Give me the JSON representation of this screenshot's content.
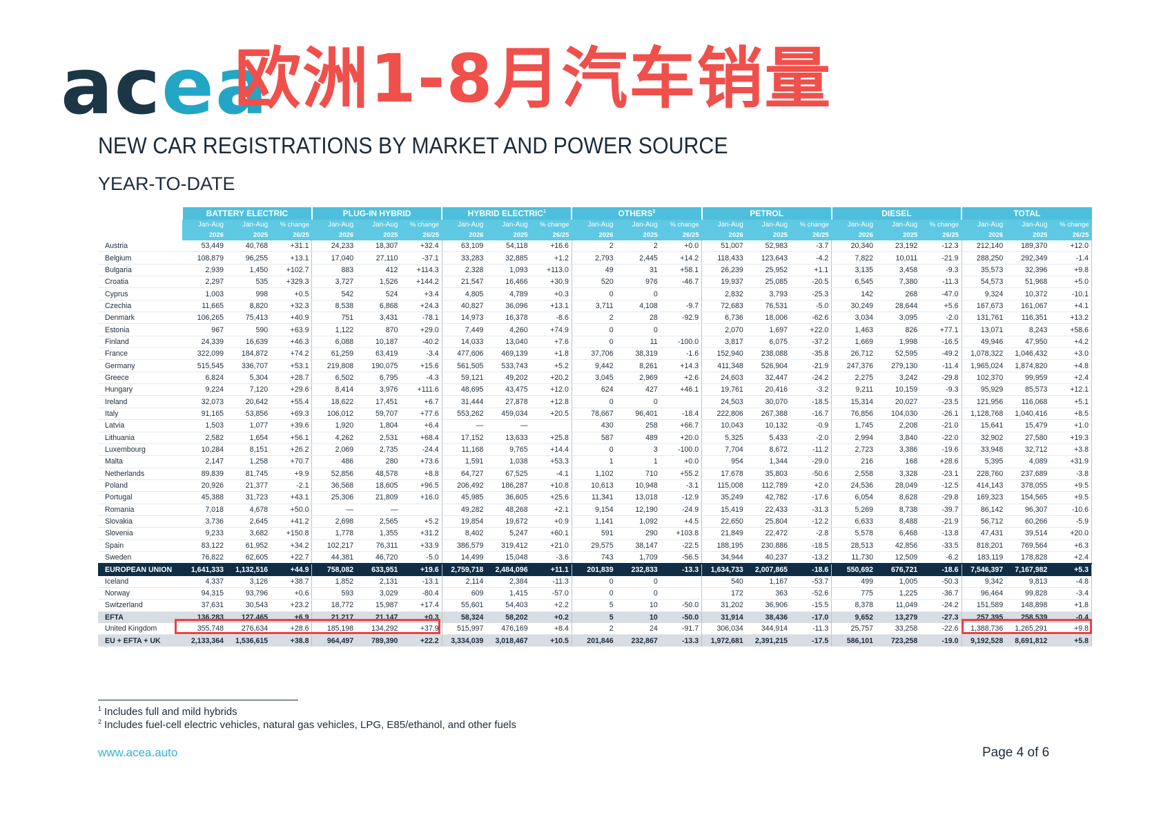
{
  "logo": {
    "part1": "ac",
    "part2": "ea"
  },
  "overlay_title": "欧洲1-8月汽车销量",
  "title": "NEW CAR REGISTRATIONS BY MARKET AND POWER SOURCE",
  "subtitle": "YEAR-TO-DATE",
  "groups": [
    "BATTERY ELECTRIC",
    "PLUG-IN HYBRID",
    "HYBRID ELECTRIC",
    "OTHERS",
    "PETROL",
    "DIESEL",
    "TOTAL"
  ],
  "group_footnotes": [
    "",
    "",
    "1",
    "2",
    "",
    "",
    ""
  ],
  "col_headers": {
    "a": "Jan-Aug",
    "b": "Jan-Aug",
    "c": "% change"
  },
  "col_subheaders": {
    "a": "2026",
    "b": "2025",
    "c": "26/25"
  },
  "rows": [
    {
      "country": "Austria",
      "v": [
        "53,449",
        "40,768",
        "+31.1",
        "24,233",
        "18,307",
        "+32.4",
        "63,109",
        "54,118",
        "+16.6",
        "2",
        "2",
        "+0.0",
        "51,007",
        "52,983",
        "-3.7",
        "20,340",
        "23,192",
        "-12.3",
        "212,140",
        "189,370",
        "+12.0"
      ]
    },
    {
      "country": "Belgium",
      "v": [
        "108,879",
        "96,255",
        "+13.1",
        "17,040",
        "27,110",
        "-37.1",
        "33,283",
        "32,885",
        "+1.2",
        "2,793",
        "2,445",
        "+14.2",
        "118,433",
        "123,643",
        "-4.2",
        "7,822",
        "10,011",
        "-21.9",
        "288,250",
        "292,349",
        "-1.4"
      ]
    },
    {
      "country": "Bulgaria",
      "v": [
        "2,939",
        "1,450",
        "+102.7",
        "883",
        "412",
        "+114.3",
        "2,328",
        "1,093",
        "+113.0",
        "49",
        "31",
        "+58.1",
        "26,239",
        "25,952",
        "+1.1",
        "3,135",
        "3,458",
        "-9.3",
        "35,573",
        "32,396",
        "+9.8"
      ]
    },
    {
      "country": "Croatia",
      "v": [
        "2,297",
        "535",
        "+329.3",
        "3,727",
        "1,526",
        "+144.2",
        "21,547",
        "16,466",
        "+30.9",
        "520",
        "976",
        "-46.7",
        "19,937",
        "25,085",
        "-20.5",
        "6,545",
        "7,380",
        "-11.3",
        "54,573",
        "51,968",
        "+5.0"
      ]
    },
    {
      "country": "Cyprus",
      "v": [
        "1,003",
        "998",
        "+0.5",
        "542",
        "524",
        "+3.4",
        "4,805",
        "4,789",
        "+0.3",
        "0",
        "0",
        "",
        "2,832",
        "3,793",
        "-25.3",
        "142",
        "268",
        "-47.0",
        "9,324",
        "10,372",
        "-10.1"
      ]
    },
    {
      "country": "Czechia",
      "v": [
        "11,665",
        "8,820",
        "+32.3",
        "8,538",
        "6,868",
        "+24.3",
        "40,827",
        "36,096",
        "+13.1",
        "3,711",
        "4,108",
        "-9.7",
        "72,683",
        "76,531",
        "-5.0",
        "30,249",
        "28,644",
        "+5.6",
        "167,673",
        "161,067",
        "+4.1"
      ]
    },
    {
      "country": "Denmark",
      "v": [
        "106,265",
        "75,413",
        "+40.9",
        "751",
        "3,431",
        "-78.1",
        "14,973",
        "16,378",
        "-8.6",
        "2",
        "28",
        "-92.9",
        "6,736",
        "18,006",
        "-62.6",
        "3,034",
        "3,095",
        "-2.0",
        "131,761",
        "116,351",
        "+13.2"
      ]
    },
    {
      "country": "Estonia",
      "v": [
        "967",
        "590",
        "+63.9",
        "1,122",
        "870",
        "+29.0",
        "7,449",
        "4,260",
        "+74.9",
        "0",
        "0",
        "",
        "2,070",
        "1,697",
        "+22.0",
        "1,463",
        "826",
        "+77.1",
        "13,071",
        "8,243",
        "+58.6"
      ]
    },
    {
      "country": "Finland",
      "v": [
        "24,339",
        "16,639",
        "+46.3",
        "6,088",
        "10,187",
        "-40.2",
        "14,033",
        "13,040",
        "+7.6",
        "0",
        "11",
        "-100.0",
        "3,817",
        "6,075",
        "-37.2",
        "1,669",
        "1,998",
        "-16.5",
        "49,946",
        "47,950",
        "+4.2"
      ]
    },
    {
      "country": "France",
      "v": [
        "322,099",
        "184,872",
        "+74.2",
        "61,259",
        "63,419",
        "-3.4",
        "477,606",
        "469,139",
        "+1.8",
        "37,706",
        "38,319",
        "-1.6",
        "152,940",
        "238,088",
        "-35.8",
        "26,712",
        "52,595",
        "-49.2",
        "1,078,322",
        "1,046,432",
        "+3.0"
      ]
    },
    {
      "country": "Germany",
      "v": [
        "515,545",
        "336,707",
        "+53.1",
        "219,808",
        "190,075",
        "+15.6",
        "561,505",
        "533,743",
        "+5.2",
        "9,442",
        "8,261",
        "+14.3",
        "411,348",
        "526,904",
        "-21.9",
        "247,376",
        "279,130",
        "-11.4",
        "1,965,024",
        "1,874,820",
        "+4.8"
      ]
    },
    {
      "country": "Greece",
      "v": [
        "6,824",
        "5,304",
        "+28.7",
        "6,502",
        "6,795",
        "-4.3",
        "59,121",
        "49,202",
        "+20.2",
        "3,045",
        "2,969",
        "+2.6",
        "24,603",
        "32,447",
        "-24.2",
        "2,275",
        "3,242",
        "-29.8",
        "102,370",
        "99,959",
        "+2.4"
      ]
    },
    {
      "country": "Hungary",
      "v": [
        "9,224",
        "7,120",
        "+29.6",
        "8,414",
        "3,976",
        "+111.6",
        "48,695",
        "43,475",
        "+12.0",
        "624",
        "427",
        "+46.1",
        "19,761",
        "20,416",
        "-3.2",
        "9,211",
        "10,159",
        "-9.3",
        "95,929",
        "85,573",
        "+12.1"
      ]
    },
    {
      "country": "Ireland",
      "v": [
        "32,073",
        "20,642",
        "+55.4",
        "18,622",
        "17,451",
        "+6.7",
        "31,444",
        "27,878",
        "+12.8",
        "0",
        "0",
        "",
        "24,503",
        "30,070",
        "-18.5",
        "15,314",
        "20,027",
        "-23.5",
        "121,956",
        "116,068",
        "+5.1"
      ]
    },
    {
      "country": "Italy",
      "v": [
        "91,165",
        "53,856",
        "+69.3",
        "106,012",
        "59,707",
        "+77.6",
        "553,262",
        "459,034",
        "+20.5",
        "78,667",
        "96,401",
        "-18.4",
        "222,806",
        "267,388",
        "-16.7",
        "76,856",
        "104,030",
        "-26.1",
        "1,128,768",
        "1,040,416",
        "+8.5"
      ]
    },
    {
      "country": "Latvia",
      "v": [
        "1,503",
        "1,077",
        "+39.6",
        "1,920",
        "1,804",
        "+6.4",
        "—",
        "—",
        "",
        "430",
        "258",
        "+66.7",
        "10,043",
        "10,132",
        "-0.9",
        "1,745",
        "2,208",
        "-21.0",
        "15,641",
        "15,479",
        "+1.0"
      ]
    },
    {
      "country": "Lithuania",
      "v": [
        "2,582",
        "1,654",
        "+56.1",
        "4,262",
        "2,531",
        "+68.4",
        "17,152",
        "13,633",
        "+25.8",
        "587",
        "489",
        "+20.0",
        "5,325",
        "5,433",
        "-2.0",
        "2,994",
        "3,840",
        "-22.0",
        "32,902",
        "27,580",
        "+19.3"
      ]
    },
    {
      "country": "Luxembourg",
      "v": [
        "10,284",
        "8,151",
        "+26.2",
        "2,069",
        "2,735",
        "-24.4",
        "11,168",
        "9,765",
        "+14.4",
        "0",
        "3",
        "-100.0",
        "7,704",
        "8,672",
        "-11.2",
        "2,723",
        "3,386",
        "-19.6",
        "33,948",
        "32,712",
        "+3.8"
      ]
    },
    {
      "country": "Malta",
      "v": [
        "2,147",
        "1,258",
        "+70.7",
        "486",
        "280",
        "+73.6",
        "1,591",
        "1,038",
        "+53.3",
        "1",
        "1",
        "+0.0",
        "954",
        "1,344",
        "-29.0",
        "216",
        "168",
        "+28.6",
        "5,395",
        "4,089",
        "+31.9"
      ]
    },
    {
      "country": "Netherlands",
      "v": [
        "89,839",
        "81,745",
        "+9.9",
        "52,856",
        "48,578",
        "+8.8",
        "64,727",
        "67,525",
        "-4.1",
        "1,102",
        "710",
        "+55.2",
        "17,678",
        "35,803",
        "-50.6",
        "2,558",
        "3,328",
        "-23.1",
        "228,760",
        "237,689",
        "-3.8"
      ]
    },
    {
      "country": "Poland",
      "v": [
        "20,926",
        "21,377",
        "-2.1",
        "36,568",
        "18,605",
        "+96.5",
        "206,492",
        "186,287",
        "+10.8",
        "10,613",
        "10,948",
        "-3.1",
        "115,008",
        "112,789",
        "+2.0",
        "24,536",
        "28,049",
        "-12.5",
        "414,143",
        "378,055",
        "+9.5"
      ]
    },
    {
      "country": "Portugal",
      "v": [
        "45,388",
        "31,723",
        "+43.1",
        "25,306",
        "21,809",
        "+16.0",
        "45,985",
        "36,605",
        "+25.6",
        "11,341",
        "13,018",
        "-12.9",
        "35,249",
        "42,782",
        "-17.6",
        "6,054",
        "8,628",
        "-29.8",
        "169,323",
        "154,565",
        "+9.5"
      ]
    },
    {
      "country": "Romania",
      "v": [
        "7,018",
        "4,678",
        "+50.0",
        "—",
        "—",
        "",
        "49,282",
        "48,268",
        "+2.1",
        "9,154",
        "12,190",
        "-24.9",
        "15,419",
        "22,433",
        "-31.3",
        "5,269",
        "8,738",
        "-39.7",
        "86,142",
        "96,307",
        "-10.6"
      ]
    },
    {
      "country": "Slovakia",
      "v": [
        "3,736",
        "2,645",
        "+41.2",
        "2,698",
        "2,565",
        "+5.2",
        "19,854",
        "19,672",
        "+0.9",
        "1,141",
        "1,092",
        "+4.5",
        "22,650",
        "25,804",
        "-12.2",
        "6,633",
        "8,488",
        "-21.9",
        "56,712",
        "60,266",
        "-5.9"
      ]
    },
    {
      "country": "Slovenia",
      "v": [
        "9,233",
        "3,682",
        "+150.8",
        "1,778",
        "1,355",
        "+31.2",
        "8,402",
        "5,247",
        "+60.1",
        "591",
        "290",
        "+103.8",
        "21,849",
        "22,472",
        "-2.8",
        "5,578",
        "6,468",
        "-13.8",
        "47,431",
        "39,514",
        "+20.0"
      ]
    },
    {
      "country": "Spain",
      "v": [
        "83,122",
        "61,952",
        "+34.2",
        "102,217",
        "76,311",
        "+33.9",
        "386,579",
        "319,412",
        "+21.0",
        "29,575",
        "38,147",
        "-22.5",
        "188,195",
        "230,886",
        "-18.5",
        "28,513",
        "42,856",
        "-33.5",
        "818,201",
        "769,564",
        "+6.3"
      ]
    },
    {
      "country": "Sweden",
      "v": [
        "76,822",
        "62,605",
        "+22.7",
        "44,381",
        "46,720",
        "-5.0",
        "14,499",
        "15,048",
        "-3.6",
        "743",
        "1,709",
        "-56.5",
        "34,944",
        "40,237",
        "-13.2",
        "11,730",
        "12,509",
        "-6.2",
        "183,119",
        "178,828",
        "+2.4"
      ]
    }
  ],
  "eu_row": {
    "country": "EUROPEAN UNION",
    "v": [
      "1,641,333",
      "1,132,516",
      "+44.9",
      "758,082",
      "633,951",
      "+19.6",
      "2,759,718",
      "2,484,096",
      "+11.1",
      "201,839",
      "232,833",
      "-13.3",
      "1,634,733",
      "2,007,865",
      "-18.6",
      "550,692",
      "676,721",
      "-18.6",
      "7,546,397",
      "7,167,982",
      "+5.3"
    ]
  },
  "efta_rows": [
    {
      "country": "Iceland",
      "v": [
        "4,337",
        "3,126",
        "+38.7",
        "1,852",
        "2,131",
        "-13.1",
        "2,114",
        "2,384",
        "-11.3",
        "0",
        "0",
        "",
        "540",
        "1,167",
        "-53.7",
        "499",
        "1,005",
        "-50.3",
        "9,342",
        "9,813",
        "-4.8"
      ]
    },
    {
      "country": "Norway",
      "v": [
        "94,315",
        "93,796",
        "+0.6",
        "593",
        "3,029",
        "-80.4",
        "609",
        "1,415",
        "-57.0",
        "0",
        "0",
        "",
        "172",
        "363",
        "-52.6",
        "775",
        "1,225",
        "-36.7",
        "96,464",
        "99,828",
        "-3.4"
      ]
    },
    {
      "country": "Switzerland",
      "v": [
        "37,631",
        "30,543",
        "+23.2",
        "18,772",
        "15,987",
        "+17.4",
        "55,601",
        "54,403",
        "+2.2",
        "5",
        "10",
        "-50.0",
        "31,202",
        "36,906",
        "-15.5",
        "8,378",
        "11,049",
        "-24.2",
        "151,589",
        "148,898",
        "+1.8"
      ]
    }
  ],
  "efta_total": {
    "country": "EFTA",
    "v": [
      "136,283",
      "127,465",
      "+6.9",
      "21,217",
      "21,147",
      "+0.3",
      "58,324",
      "58,202",
      "+0.2",
      "5",
      "10",
      "-50.0",
      "31,914",
      "38,436",
      "-17.0",
      "9,652",
      "13,279",
      "-27.3",
      "257,395",
      "258,539",
      "-0.4"
    ]
  },
  "uk_row": {
    "country": "United Kingdom",
    "v": [
      "355,748",
      "276,634",
      "+28.6",
      "185,198",
      "134,292",
      "+37.9",
      "515,997",
      "476,169",
      "+8.4",
      "2",
      "24",
      "-91.7",
      "306,034",
      "344,914",
      "-11.3",
      "25,757",
      "33,258",
      "-22.6",
      "1,388,736",
      "1,265,291",
      "+9.8"
    ]
  },
  "grand_total": {
    "country": "EU + EFTA + UK",
    "v": [
      "2,133,364",
      "1,536,615",
      "+38.8",
      "964,497",
      "789,390",
      "+22.2",
      "3,334,039",
      "3,018,467",
      "+10.5",
      "201,846",
      "232,867",
      "-13.3",
      "1,972,681",
      "2,391,215",
      "-17.5",
      "586,101",
      "723,258",
      "-19.0",
      "9,192,528",
      "8,691,812",
      "+5.8"
    ]
  },
  "footnotes": [
    {
      "mark": "1",
      "text": "Includes full and mild hybrids"
    },
    {
      "mark": "2",
      "text": "Includes fuel-cell electric vehicles, natural gas vehicles, LPG, E85/ethanol, and other fuels"
    }
  ],
  "website": "www.acea.auto",
  "page_label": "Page 4 of 6",
  "colors": {
    "accent_cyan": "#4dbfdc",
    "eu_row": "#0f2d44",
    "highlight_red": "#ef3f3f",
    "title_red": "#f0504b"
  }
}
